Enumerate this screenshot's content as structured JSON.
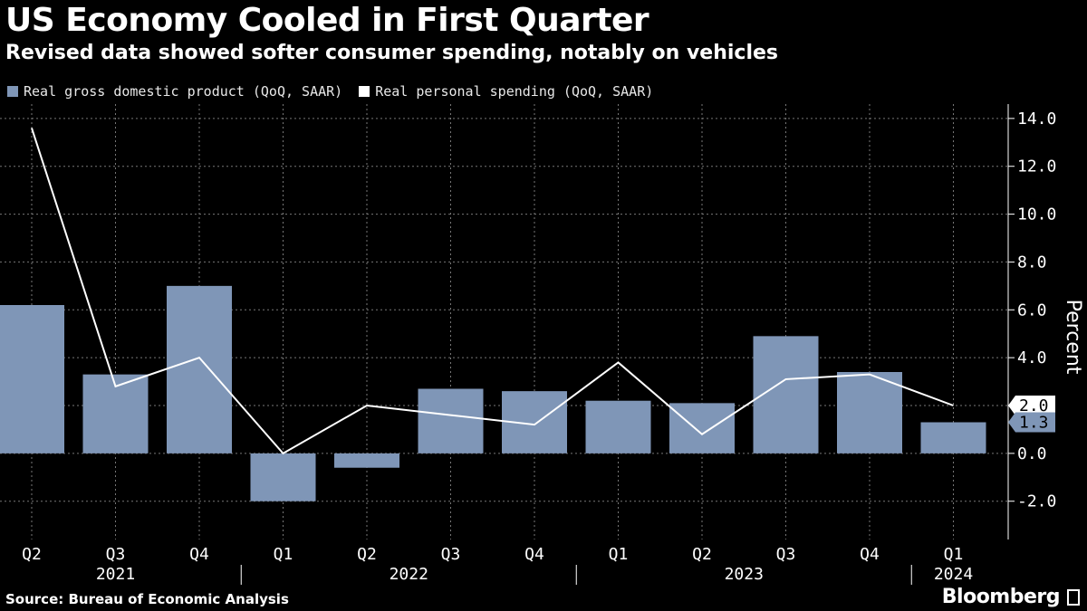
{
  "title": "US Economy Cooled in First Quarter",
  "subtitle": "Revised data showed softer consumer spending, notably on vehicles",
  "source": "Source: Bureau of Economic Analysis",
  "brand": "Bloomberg",
  "colors": {
    "bar": "#7f96b7",
    "line": "#ffffff",
    "grid": "#777777",
    "background": "#000000"
  },
  "chart_data": {
    "type": "bar",
    "categories": [
      "Q2",
      "Q3",
      "Q4",
      "Q1",
      "Q2",
      "Q3",
      "Q4",
      "Q1",
      "Q2",
      "Q3",
      "Q4",
      "Q1"
    ],
    "years": [
      {
        "label": "2021",
        "start": 0,
        "end": 2
      },
      {
        "label": "2022",
        "start": 3,
        "end": 6
      },
      {
        "label": "2023",
        "start": 7,
        "end": 10
      },
      {
        "label": "2024",
        "start": 11,
        "end": 11
      }
    ],
    "series": [
      {
        "name": "Real gross domestic product (QoQ, SAAR)",
        "kind": "bar",
        "values": [
          6.2,
          3.3,
          7.0,
          -2.0,
          -0.6,
          2.7,
          2.6,
          2.2,
          2.1,
          4.9,
          3.4,
          1.3
        ]
      },
      {
        "name": "Real personal spending (QoQ, SAAR)",
        "kind": "line",
        "values": [
          13.6,
          2.8,
          4.0,
          0.0,
          2.0,
          1.6,
          1.2,
          3.8,
          0.8,
          3.1,
          3.3,
          2.0
        ]
      }
    ],
    "ylabel": "Percent",
    "ylim": [
      -3.6,
      14.6
    ],
    "yticks": [
      -2.0,
      0.0,
      2.0,
      4.0,
      6.0,
      8.0,
      10.0,
      12.0,
      14.0
    ],
    "ytick_labels": [
      "-2.0",
      "0.0",
      "2.0",
      "4.0",
      "6.0",
      "8.0",
      "10.0",
      "12.0",
      "14.0"
    ],
    "last_value_labels": {
      "line": "2.0",
      "bar": "1.3"
    },
    "grid": true,
    "legend_position": "top-left"
  }
}
